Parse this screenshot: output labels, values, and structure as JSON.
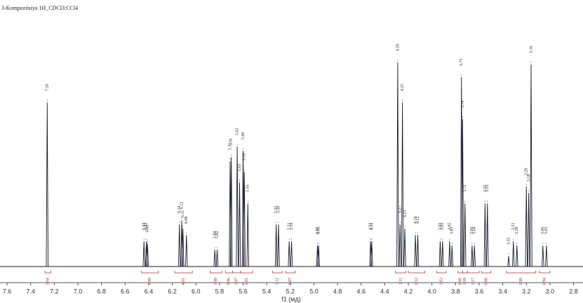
{
  "chart_data": {
    "type": "spectrum",
    "title": "3-Kompozitsiya 1H_CDCl3:CCl4",
    "x_label": "f1 (мд)",
    "xlim": [
      7.66,
      2.72
    ],
    "ylim": [
      0,
      100
    ],
    "xticks": [
      7.6,
      7.4,
      7.2,
      {
        "value": 7.0,
        "label": "7.0"
      },
      6.8,
      6.6,
      6.4,
      6.2,
      {
        "value": 6.0,
        "label": "6.0"
      },
      5.8,
      5.6,
      5.4,
      5.2,
      {
        "value": 5.0,
        "label": "5.0"
      },
      4.8,
      4.6,
      4.4,
      4.2,
      {
        "value": 4.0,
        "label": "4.0"
      },
      3.8,
      3.6,
      3.4,
      3.2,
      {
        "value": 3.0,
        "label": "3.0"
      },
      2.8
    ],
    "color": "#1a1a2e",
    "x": [
      7.26,
      6.44,
      6.42,
      6.41,
      6.14,
      6.12,
      6.11,
      6.08,
      5.84,
      5.82,
      5.71,
      5.7,
      5.65,
      5.63,
      5.6,
      5.59,
      5.56,
      5.32,
      5.3,
      5.21,
      5.19,
      4.97,
      4.96,
      4.52,
      4.51,
      4.29,
      4.27,
      4.25,
      4.23,
      4.14,
      4.12,
      3.93,
      3.91,
      3.85,
      3.83,
      3.75,
      3.74,
      3.72,
      3.66,
      3.64,
      3.55,
      3.53,
      3.35,
      3.31,
      3.28,
      3.2,
      3.18,
      3.16,
      3.06,
      3.03
    ],
    "x_labels": [
      "7.26",
      "6.44",
      "6.42",
      "6.41",
      "6.14",
      "6.12",
      "6.11",
      "6.08",
      "5.84",
      "5.82",
      "5.71",
      "5.70",
      "5.65",
      "5.63",
      "5.60",
      "5.59",
      "5.56",
      "5.32",
      "5.30",
      "5.21",
      "5.19",
      "4.97",
      "4.96",
      "4.52",
      "4.51",
      "4.29",
      "4.27",
      "4.25",
      "4.23",
      "4.14",
      "4.12",
      "3.93",
      "3.91",
      "3.85",
      "3.83",
      "3.75",
      "3.74",
      "3.72",
      "3.66",
      "3.64",
      "3.55",
      "3.53",
      "3.35",
      "3.31",
      "3.28",
      "3.20",
      "3.18",
      "3.16",
      "3.06",
      "3.03"
    ],
    "values": [
      78,
      12,
      12,
      11,
      20,
      22,
      18,
      15,
      8,
      8,
      50,
      52,
      57,
      40,
      55,
      45,
      30,
      20,
      20,
      12,
      12,
      10,
      10,
      12,
      12,
      97,
      20,
      78,
      18,
      15,
      15,
      12,
      12,
      12,
      10,
      90,
      70,
      30,
      10,
      10,
      30,
      30,
      5,
      12,
      10,
      38,
      35,
      96,
      10,
      10
    ],
    "integral_ranges": [
      [
        7.28,
        7.23
      ],
      [
        6.46,
        6.32
      ],
      [
        6.18,
        6.03
      ],
      [
        5.88,
        5.78
      ],
      [
        5.75,
        5.69
      ],
      [
        5.69,
        5.62
      ],
      [
        5.62,
        5.52
      ],
      [
        5.35,
        5.27
      ],
      [
        5.24,
        5.16
      ],
      [
        4.31,
        4.22
      ],
      [
        4.2,
        4.06
      ],
      [
        3.96,
        3.88
      ],
      [
        3.78,
        3.74
      ],
      [
        3.74,
        3.7
      ],
      [
        3.7,
        3.6
      ],
      [
        3.58,
        3.5
      ],
      [
        3.37,
        3.12
      ],
      [
        3.09,
        3.0
      ]
    ],
    "integral_labels": [
      "3.04",
      "1.99",
      "4.01",
      "1.99",
      "0.96",
      "1.97",
      "1.01",
      "1.12",
      "1.07",
      "1.11",
      "2.12",
      "1.03",
      "0.99",
      "1.09",
      "1.17",
      "0.88",
      "2.99",
      "0.94"
    ]
  }
}
